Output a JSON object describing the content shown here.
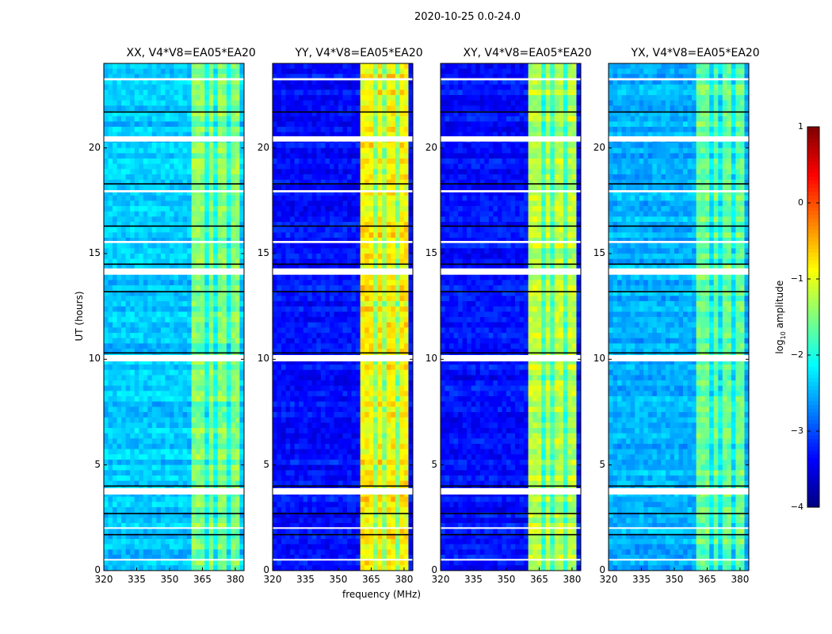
{
  "chart_data": {
    "type": "heatmap",
    "suptitle": "2020-10-25 0.0-24.0",
    "xlabel": "frequency (MHz)",
    "ylabel": "UT (hours)",
    "xlim": [
      320,
      384
    ],
    "ylim": [
      0,
      24
    ],
    "xticks": [
      "320",
      "335",
      "350",
      "365",
      "380"
    ],
    "xtick_values": [
      320,
      335,
      350,
      365,
      380
    ],
    "yticks": [
      "0",
      "5",
      "10",
      "15",
      "20"
    ],
    "ytick_values": [
      0,
      5,
      10,
      15,
      20
    ],
    "colorbar": {
      "label_prefix": "log",
      "label_sub": "10",
      "label_suffix": " amplitude",
      "range": [
        -4,
        1
      ],
      "ticks": [
        "1",
        "0",
        "−1",
        "−2",
        "−3",
        "−4"
      ],
      "tick_values": [
        1,
        0,
        -1,
        -2,
        -3,
        -4
      ],
      "colormap": "jet"
    },
    "band": {
      "start_mhz": 361,
      "end_mhz": 381,
      "gaps_mhz": [
        366.5,
        371.5,
        377
      ]
    },
    "flagged_hours_white": [
      [
        20.3,
        20.55
      ],
      [
        14.0,
        14.3
      ],
      [
        9.9,
        10.2
      ],
      [
        3.6,
        3.9
      ],
      [
        17.9,
        18.0
      ],
      [
        15.5,
        15.6
      ],
      [
        23.2,
        23.3
      ],
      [
        0.5,
        0.55
      ],
      [
        2.0,
        2.05
      ]
    ],
    "dark_lines_hours": [
      21.7,
      18.3,
      16.3,
      14.5,
      13.2,
      10.3,
      4.0,
      2.7,
      1.7
    ],
    "panels": [
      {
        "title": "XX, V4*V8=EA05*EA20",
        "baseline_log": -2.4,
        "band_log": -1.5
      },
      {
        "title": "YY, V4*V8=EA05*EA20",
        "baseline_log": -3.3,
        "band_log": -0.8
      },
      {
        "title": "XY, V4*V8=EA05*EA20",
        "baseline_log": -3.3,
        "band_log": -1.2
      },
      {
        "title": "YX, V4*V8=EA05*EA20",
        "baseline_log": -2.5,
        "band_log": -1.6
      }
    ]
  }
}
